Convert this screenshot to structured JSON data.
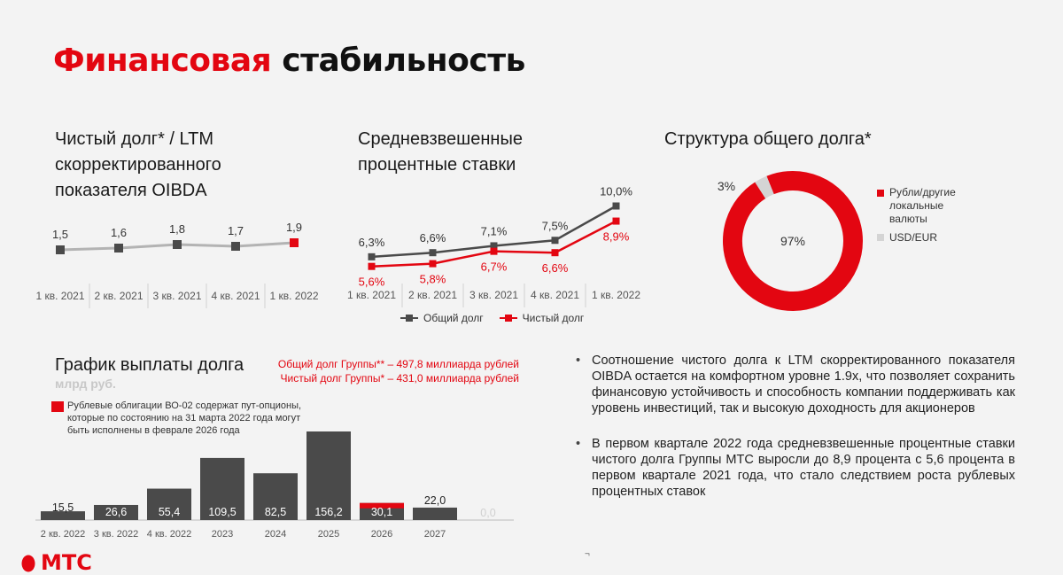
{
  "page": {
    "title_red": "Финансовая",
    "title_black": "стабильность",
    "brand": "МТС",
    "footer_char": "¬"
  },
  "colors": {
    "accent": "#e30611",
    "dark": "#4a4a4a",
    "grey": "#b3b3b3",
    "light": "#d4d4d4"
  },
  "net_debt": {
    "title_line1": "Чистый долг* / LTM",
    "title_line2": "скорректированного",
    "title_line3": "показателя OIBDA"
  },
  "rates": {
    "title_line1": "Средневзвешенные",
    "title_line2": "процентные ставки",
    "legend_total": "Общий долг",
    "legend_net": "Чистый долг"
  },
  "structure": {
    "title": "Структура общего долга*",
    "legend_rub_line1": "Рубли/другие",
    "legend_rub_line2": "локальные",
    "legend_rub_line3": "валюты",
    "legend_usd": "USD/EUR"
  },
  "schedule": {
    "title": "График выплаты долга",
    "unit": "млрд руб.",
    "total_note": "Общий долг Группы** – 497,8 миллиарда рублей",
    "net_note": "Чистый долг Группы* – 431,0 миллиарда рублей",
    "footnote_line1": "Рублевые облигации ВО-02 содержат пут-опционы,",
    "footnote_line2": "которые по состоянию на 31 марта 2022 года могут",
    "footnote_line3": "быть исполнены в феврале 2026 года"
  },
  "bullets": [
    "Соотношение чистого долга к LTM скорректированного показателя OIBDA остается на комфортном уровне 1.9х, что позволяет сохранить финансовую устойчивость и способность компании поддерживать как уровень инвестиций, так и высокую доходность для акционеров",
    "В первом квартале 2022 года средневзвешенные процентные ставки чистого долга Группы МТС выросли до 8,9 процента с 5,6 процента в первом квартале 2021 года, что стало следствием роста рублевых процентных ставок"
  ],
  "chart_data": [
    {
      "type": "line",
      "title": "Чистый долг* / LTM скорректированного показателя OIBDA",
      "categories": [
        "1 кв. 2021",
        "2 кв. 2021",
        "3 кв. 2021",
        "4 кв. 2021",
        "1 кв. 2022"
      ],
      "values": [
        1.5,
        1.6,
        1.8,
        1.7,
        1.9
      ],
      "labels": [
        "1,5",
        "1,6",
        "1,8",
        "1,7",
        "1,9"
      ],
      "ylim": [
        0,
        4
      ]
    },
    {
      "type": "line",
      "title": "Средневзвешенные процентные ставки",
      "categories": [
        "1 кв. 2021",
        "2 кв. 2021",
        "3 кв. 2021",
        "4 кв. 2021",
        "1 кв. 2022"
      ],
      "series": [
        {
          "name": "Общий долг",
          "values": [
            6.3,
            6.6,
            7.1,
            7.5,
            10.0
          ],
          "labels": [
            "6,3%",
            "6,6%",
            "7,1%",
            "7,5%",
            "10,0%"
          ],
          "color": "#4a4a4a"
        },
        {
          "name": "Чистый долг",
          "values": [
            5.6,
            5.8,
            6.7,
            6.6,
            8.9
          ],
          "labels": [
            "5,6%",
            "5,8%",
            "6,7%",
            "6,6%",
            "8,9%"
          ],
          "color": "#e30611"
        }
      ],
      "ylim": [
        3,
        11
      ],
      "legend": "bottom"
    },
    {
      "type": "pie",
      "title": "Структура общего долга*",
      "categories": [
        "Рубли/другие локальные валюты",
        "USD/EUR"
      ],
      "values": [
        97,
        3
      ],
      "labels": [
        "97%",
        "3%"
      ],
      "colors": [
        "#e30611",
        "#d4d4d4"
      ],
      "donut": true
    },
    {
      "type": "bar",
      "title": "График выплаты долга",
      "ylabel": "млрд руб.",
      "categories": [
        "2 кв. 2022",
        "3 кв. 2022",
        "4 кв. 2022",
        "2023",
        "2024",
        "2025",
        "2026",
        "2027",
        ""
      ],
      "values": [
        15.5,
        26.6,
        55.4,
        109.5,
        82.5,
        156.2,
        30.1,
        22.0,
        0.0
      ],
      "labels": [
        "15,5",
        "26,6",
        "55,4",
        "109,5",
        "82,5",
        "156,2",
        "30,1",
        "22,0",
        "0,0"
      ],
      "highlight_red": [
        0,
        0,
        0,
        0,
        0,
        0,
        8,
        0,
        0
      ],
      "ylim": [
        0,
        160
      ]
    }
  ]
}
